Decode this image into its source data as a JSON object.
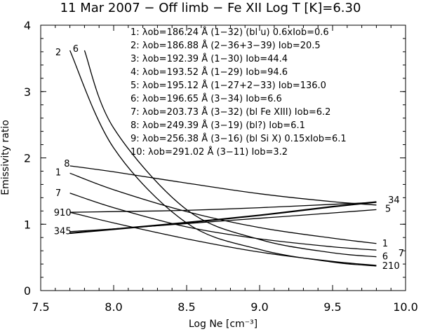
{
  "chart_data": {
    "type": "line",
    "title": "11 Mar 2007 − Off limb −   Fe XII   Log T [K]=6.30",
    "xlabel": "Log Ne [cm⁻³]",
    "ylabel": "Emissivity ratio",
    "xlim": [
      7.5,
      10.0
    ],
    "ylim": [
      0,
      4
    ],
    "xticks": [
      "7.5",
      "8.0",
      "8.5",
      "9.0",
      "9.5",
      "10.0"
    ],
    "yticks": [
      "0",
      "1",
      "2",
      "3",
      "4"
    ],
    "legend": [
      "1: λob=186.24 Å (1−32) (bl u) 0.6xIob=0.6",
      "2: λob=186.88 Å (2−36+3−39)  Iob=20.5",
      "3: λob=192.39 Å (1−30) Iob=44.4",
      "4: λob=193.52 Å (1−29) Iob=94.6",
      "5: λob=195.12 Å (1−27+2−33) Iob=136.0",
      "6: λob=196.65 Å (3−34)  Iob=6.6",
      "7: λob=203.73 Å (3−32) (bl Fe XIII) Iob=6.2",
      "8: λob=249.39 Å (3−19) (bl?) Iob=6.1",
      "9: λob=256.38 Å (3−16) (bl Si X) 0.15xIob=6.1",
      "10: λob=291.02 Å (3−11) Iob=3.2"
    ],
    "series": [
      {
        "name": "1",
        "x": [
          7.7,
          8.0,
          8.5,
          9.0,
          9.5,
          9.8
        ],
        "values": [
          1.77,
          1.52,
          1.19,
          0.95,
          0.79,
          0.71
        ]
      },
      {
        "name": "2",
        "x": [
          7.7,
          8.0,
          8.5,
          9.0,
          9.5,
          9.8
        ],
        "values": [
          3.62,
          2.15,
          1.02,
          0.62,
          0.43,
          0.37
        ]
      },
      {
        "name": "3",
        "x": [
          7.7,
          8.0,
          8.5,
          9.0,
          9.5,
          9.8
        ],
        "values": [
          0.86,
          0.92,
          1.02,
          1.13,
          1.26,
          1.33
        ]
      },
      {
        "name": "4",
        "x": [
          7.7,
          8.0,
          8.5,
          9.0,
          9.5,
          9.8
        ],
        "values": [
          0.87,
          0.93,
          1.03,
          1.14,
          1.27,
          1.34
        ]
      },
      {
        "name": "5",
        "x": [
          7.7,
          8.0,
          8.5,
          9.0,
          9.5,
          9.8
        ],
        "values": [
          0.89,
          0.93,
          1.01,
          1.09,
          1.17,
          1.22
        ]
      },
      {
        "name": "6",
        "x": [
          7.8,
          8.0,
          8.5,
          9.0,
          9.5,
          9.8
        ],
        "values": [
          3.62,
          2.45,
          1.22,
          0.77,
          0.57,
          0.51
        ]
      },
      {
        "name": "7",
        "x": [
          7.7,
          8.0,
          8.5,
          9.0,
          9.5,
          9.8
        ],
        "values": [
          1.47,
          1.25,
          0.96,
          0.78,
          0.66,
          0.61
        ]
      },
      {
        "name": "8",
        "x": [
          7.7,
          8.0,
          8.5,
          9.0,
          9.5,
          9.8
        ],
        "values": [
          1.88,
          1.79,
          1.62,
          1.46,
          1.34,
          1.29
        ]
      },
      {
        "name": "9",
        "x": [
          7.7,
          8.0,
          8.5,
          9.0,
          9.5,
          9.8
        ],
        "values": [
          1.18,
          1.19,
          1.21,
          1.25,
          1.3,
          1.33
        ]
      },
      {
        "name": "10",
        "x": [
          7.7,
          8.0,
          8.5,
          9.0,
          9.5,
          9.8
        ],
        "values": [
          1.18,
          1.02,
          0.78,
          0.58,
          0.44,
          0.38
        ]
      }
    ],
    "curve_labels": [
      {
        "text": "2",
        "x": 7.62,
        "y": 3.6
      },
      {
        "text": "6",
        "x": 7.74,
        "y": 3.65
      },
      {
        "text": "8",
        "x": 7.68,
        "y": 1.92
      },
      {
        "text": "1",
        "x": 7.62,
        "y": 1.79
      },
      {
        "text": "7",
        "x": 7.62,
        "y": 1.48
      },
      {
        "text": "910",
        "x": 7.65,
        "y": 1.18
      },
      {
        "text": "345",
        "x": 7.65,
        "y": 0.9
      },
      {
        "text": "34",
        "x": 9.92,
        "y": 1.37
      },
      {
        "text": "5",
        "x": 9.88,
        "y": 1.24
      },
      {
        "text": "1",
        "x": 9.86,
        "y": 0.72
      },
      {
        "text": "7",
        "x": 9.97,
        "y": 0.57
      },
      {
        "text": "6",
        "x": 9.86,
        "y": 0.52
      },
      {
        "text": "210",
        "x": 9.9,
        "y": 0.38
      }
    ],
    "grid": false
  }
}
